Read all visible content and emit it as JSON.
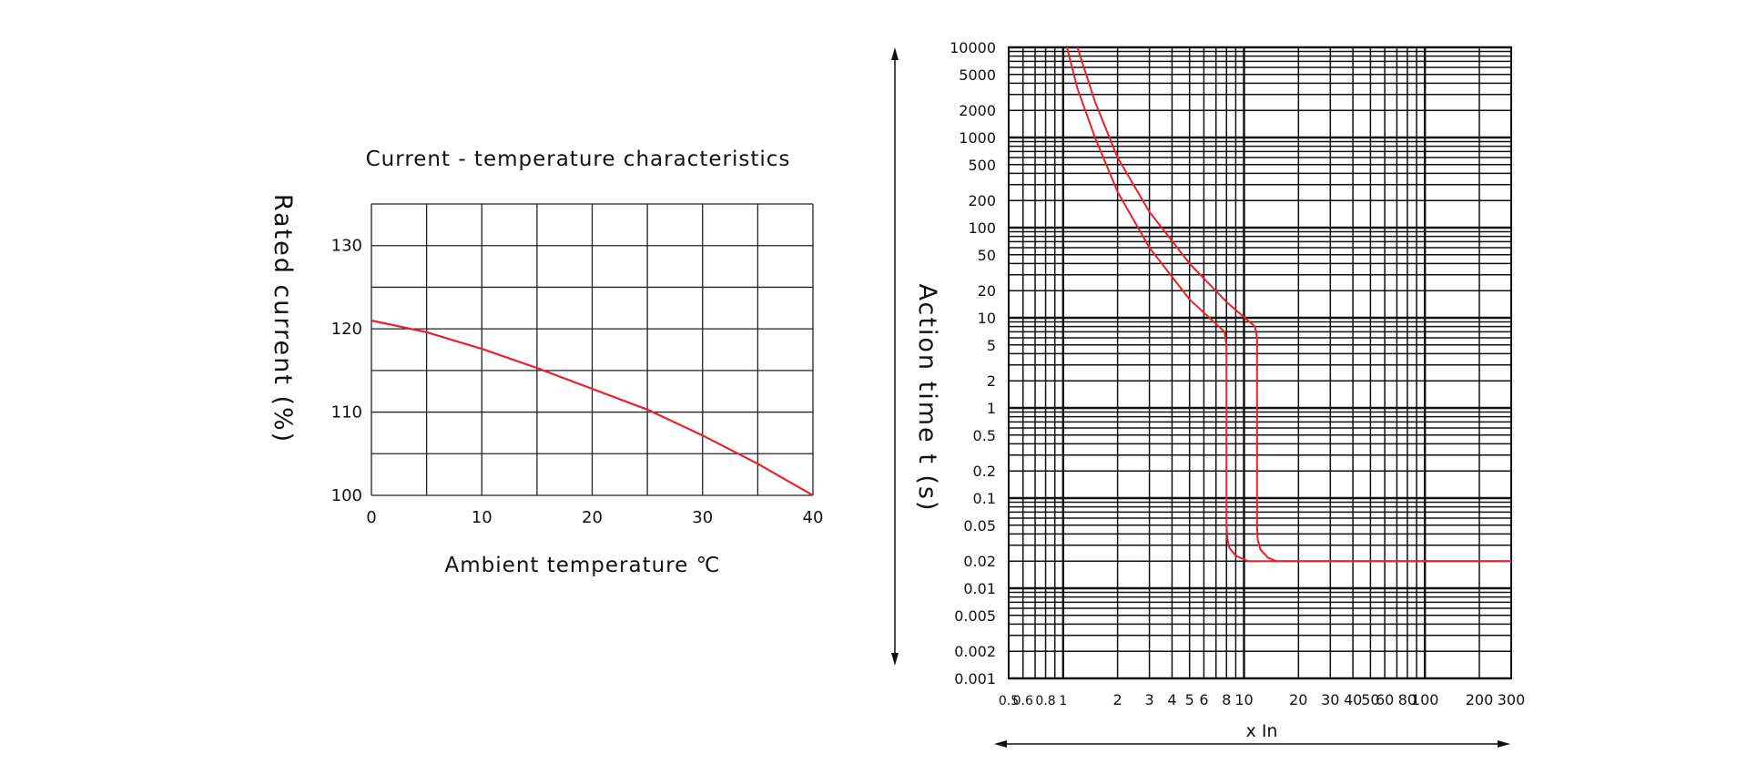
{
  "chart_data": [
    {
      "type": "line",
      "title": "Current - temperature characteristics",
      "xlabel": "Ambient temperature ℃",
      "ylabel": "Rated current (%)",
      "xlim": [
        0,
        40
      ],
      "ylim": [
        100,
        135
      ],
      "grid": true,
      "x_ticks": [
        "0",
        "10",
        "20",
        "30",
        "40"
      ],
      "y_ticks": [
        "100",
        "110",
        "120",
        "130"
      ],
      "line_color": "#e8212b",
      "series": [
        {
          "x": [
            0,
            5,
            10,
            15,
            20,
            25,
            30,
            35,
            40
          ],
          "y": [
            121,
            119.6,
            117.6,
            115.3,
            112.8,
            110.3,
            107.2,
            103.8,
            100
          ]
        }
      ]
    },
    {
      "type": "line",
      "xlabel": "x In",
      "ylabel": "Action time t (s)",
      "x_scale": "log",
      "y_scale": "log",
      "xlim": [
        0.5,
        300
      ],
      "ylim": [
        0.001,
        10000
      ],
      "grid": true,
      "x_ticks": [
        "0.5",
        "0.6",
        "0.8",
        "1",
        "2",
        "3",
        "4",
        "5",
        "6",
        "8",
        "10",
        "20",
        "30",
        "40",
        "50",
        "60",
        "80",
        "100",
        "200",
        "300"
      ],
      "y_ticks": [
        "0.001",
        "0.002",
        "0.005",
        "0.01",
        "0.02",
        "0.05",
        "0.1",
        "0.2",
        "0.5",
        "1",
        "2",
        "5",
        "10",
        "20",
        "50",
        "100",
        "200",
        "500",
        "1000",
        "2000",
        "5000",
        "10000"
      ],
      "line_color": "#e8212b",
      "series": [
        {
          "x": [
            1.05,
            1.2,
            1.5,
            2,
            3,
            5,
            7.8,
            8.0,
            8.0,
            8.1,
            8.3,
            9,
            10.5,
            13,
            300
          ],
          "y": [
            10000,
            3500,
            1000,
            250,
            60,
            16,
            7,
            5,
            0.05,
            0.035,
            0.028,
            0.023,
            0.02,
            0.02,
            0.02
          ]
        },
        {
          "x": [
            1.2,
            1.5,
            2,
            3,
            5,
            8,
            11.5,
            11.8,
            11.8,
            11.9,
            12.3,
            13.5,
            15,
            300
          ],
          "y": [
            10000,
            2500,
            600,
            150,
            40,
            15,
            8,
            6,
            0.05,
            0.035,
            0.027,
            0.022,
            0.02,
            0.02
          ]
        }
      ]
    }
  ]
}
